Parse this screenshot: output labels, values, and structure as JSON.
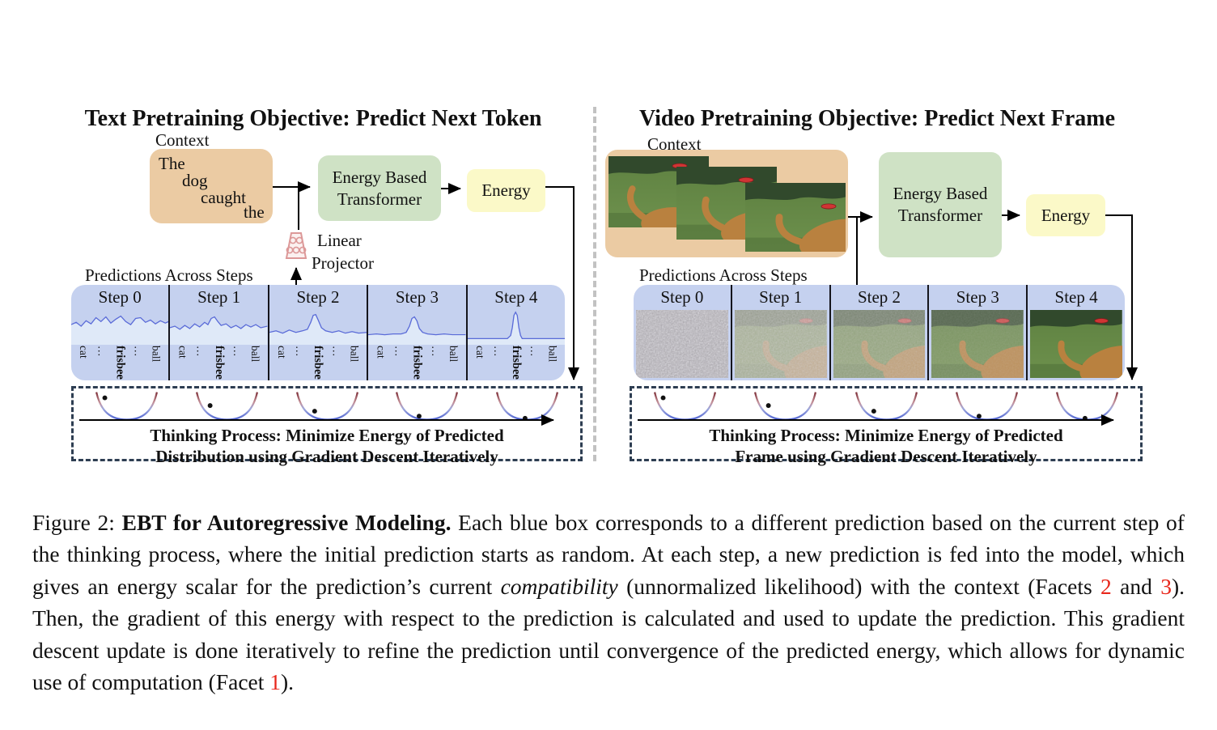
{
  "left": {
    "title": "Text Pretraining Objective: Predict Next Token",
    "context_label": "Context",
    "context_tokens": [
      "The",
      "dog",
      "caught",
      "the"
    ],
    "transformer_label": [
      "Energy Based",
      "Transformer"
    ],
    "energy_label": "Energy",
    "projector_label": [
      "Linear",
      "Projector"
    ],
    "predictions_label": "Predictions Across Steps",
    "steps": [
      "Step 0",
      "Step 1",
      "Step 2",
      "Step 3",
      "Step 4"
    ],
    "token_axis": [
      "cat",
      "…",
      "frisbee",
      "…",
      "ball"
    ],
    "thinking_lines": [
      "Thinking Process: Minimize Energy of Predicted",
      "Distribution using Gradient Descent Iteratively"
    ]
  },
  "right": {
    "title": "Video Pretraining Objective: Predict Next Frame",
    "context_label": "Context",
    "transformer_label": [
      "Energy Based",
      "Transformer"
    ],
    "energy_label": "Energy",
    "predictions_label": "Predictions Across Steps",
    "steps": [
      "Step 0",
      "Step 1",
      "Step 2",
      "Step 3",
      "Step 4"
    ],
    "thinking_lines": [
      "Thinking Process: Minimize Energy of Predicted",
      "Frame using Gradient Descent Iteratively"
    ]
  },
  "caption": {
    "segments": [
      {
        "text": "Figure 2: ",
        "style": "normal"
      },
      {
        "text": "EBT for Autoregressive Modeling.",
        "style": "bold"
      },
      {
        "text": " Each blue box corresponds to a different prediction based on the current step of the thinking process, where the initial prediction starts as random. At each step, a new prediction is fed into the model, which gives an energy scalar for the prediction’s current ",
        "style": "normal"
      },
      {
        "text": "compatibility",
        "style": "italic"
      },
      {
        "text": " (unnormalized likelihood) with the context (Facets ",
        "style": "normal"
      },
      {
        "text": "2",
        "style": "red"
      },
      {
        "text": " and ",
        "style": "normal"
      },
      {
        "text": "3",
        "style": "red"
      },
      {
        "text": "). Then, the gradient of this energy with respect to the prediction is calculated and used to update the prediction. This gradient descent update is done iteratively to refine the prediction until convergence of the predicted energy, which allows for dynamic use of computation (Facet ",
        "style": "normal"
      },
      {
        "text": "1",
        "style": "red"
      },
      {
        "text": ").",
        "style": "normal"
      }
    ]
  },
  "colors": {
    "context_box": "#ebcba3",
    "transformer_box": "#cfe2c5",
    "energy_box": "#fbf9c8",
    "predictions_box": "#c5d1ef",
    "plot_fill": "#dfe9f8",
    "plot_line": "#5a6bd8",
    "dashed_border": "#2e3e52",
    "divider": "#c2c2c2",
    "facet_red": "#e8271c"
  }
}
